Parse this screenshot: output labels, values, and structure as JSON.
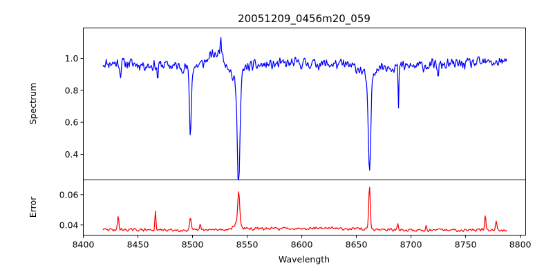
{
  "chart_data": {
    "type": "line",
    "title": "20051209_0456m20_059",
    "xlabel": "Wavelength",
    "grid": false,
    "legend": "none",
    "x_range": [
      8418,
      8788
    ],
    "panels": [
      {
        "id": "spectrum",
        "ylabel": "Spectrum",
        "xlim": [
          8400,
          8805
        ],
        "ylim": [
          0.24,
          1.19
        ],
        "yticks": [
          0.4,
          0.6,
          0.8,
          1.0
        ],
        "ytick_labels": [
          "0.4",
          "0.6",
          "0.8",
          "1.0"
        ],
        "series": [
          {
            "color": "#0000ff",
            "style": "noisy",
            "seed": 11,
            "x_start": 8418,
            "x_end": 8788,
            "step": 0.6,
            "baseline": 0.97,
            "noise": 0.042,
            "knots": [
              [
                8418,
                0.97
              ],
              [
                8440,
                0.97
              ],
              [
                8460,
                0.955
              ],
              [
                8475,
                0.96
              ],
              [
                8485,
                0.95
              ],
              [
                8500,
                0.94
              ],
              [
                8510,
                0.97
              ],
              [
                8518,
                1.02
              ],
              [
                8525,
                1.03
              ],
              [
                8530,
                0.98
              ],
              [
                8536,
                0.93
              ],
              [
                8550,
                0.95
              ],
              [
                8570,
                0.96
              ],
              [
                8600,
                0.97
              ],
              [
                8640,
                0.96
              ],
              [
                8655,
                0.93
              ],
              [
                8672,
                0.95
              ],
              [
                8700,
                0.95
              ],
              [
                8730,
                0.96
              ],
              [
                8760,
                0.97
              ],
              [
                8788,
                0.98
              ]
            ],
            "features": [
              {
                "center": 8498.0,
                "depth": 0.41,
                "width": 0.9,
                "sign": -1
              },
              {
                "center": 8542.2,
                "depth": 0.63,
                "width": 1.2,
                "sign": -1
              },
              {
                "center": 8541.0,
                "depth": 0.1,
                "width": 3.5,
                "sign": -1
              },
              {
                "center": 8662.0,
                "depth": 0.58,
                "width": 1.1,
                "sign": -1
              },
              {
                "center": 8661.5,
                "depth": 0.09,
                "width": 3.0,
                "sign": -1
              },
              {
                "center": 8688.5,
                "depth": 0.27,
                "width": 0.4,
                "sign": -1
              },
              {
                "center": 8468.0,
                "depth": 0.09,
                "width": 0.5,
                "sign": -1
              },
              {
                "center": 8434.0,
                "depth": 0.08,
                "width": 0.5,
                "sign": -1
              },
              {
                "center": 8526.0,
                "depth": 0.12,
                "width": 0.6,
                "sign": 1
              },
              {
                "center": 8725.0,
                "depth": 0.1,
                "width": 0.4,
                "sign": -1
              }
            ]
          }
        ]
      },
      {
        "id": "error",
        "ylabel": "Error",
        "xlim": [
          8400,
          8805
        ],
        "ylim": [
          0.0333,
          0.0697
        ],
        "yticks": [
          0.04,
          0.06
        ],
        "ytick_labels": [
          "0.04",
          "0.06"
        ],
        "xticks": [
          8400,
          8450,
          8500,
          8550,
          8600,
          8650,
          8700,
          8750,
          8800
        ],
        "xtick_labels": [
          "8400",
          "8450",
          "8500",
          "8550",
          "8600",
          "8650",
          "8700",
          "8750",
          "8800"
        ],
        "series": [
          {
            "color": "#ff0000",
            "style": "noisy",
            "seed": 29,
            "x_start": 8418,
            "x_end": 8788,
            "step": 0.6,
            "baseline": 0.0368,
            "noise": 0.0011,
            "knots": [
              [
                8418,
                0.037
              ],
              [
                8500,
                0.0365
              ],
              [
                8560,
                0.0375
              ],
              [
                8620,
                0.038
              ],
              [
                8700,
                0.0365
              ],
              [
                8788,
                0.0368
              ]
            ],
            "features": [
              {
                "center": 8662.0,
                "depth": 0.029,
                "width": 0.7,
                "sign": 1
              },
              {
                "center": 8542.3,
                "depth": 0.021,
                "width": 0.9,
                "sign": 1
              },
              {
                "center": 8541.0,
                "depth": 0.004,
                "width": 3.0,
                "sign": 1
              },
              {
                "center": 8498.0,
                "depth": 0.008,
                "width": 0.7,
                "sign": 1
              },
              {
                "center": 8466.0,
                "depth": 0.0115,
                "width": 0.5,
                "sign": 1
              },
              {
                "center": 8432.0,
                "depth": 0.009,
                "width": 0.6,
                "sign": 1
              },
              {
                "center": 8768.0,
                "depth": 0.0105,
                "width": 0.5,
                "sign": 1
              },
              {
                "center": 8778.0,
                "depth": 0.006,
                "width": 0.6,
                "sign": 1
              },
              {
                "center": 8688.0,
                "depth": 0.004,
                "width": 0.5,
                "sign": 1
              },
              {
                "center": 8507.0,
                "depth": 0.004,
                "width": 0.5,
                "sign": 1
              },
              {
                "center": 8714.0,
                "depth": 0.003,
                "width": 0.5,
                "sign": 1
              }
            ]
          }
        ]
      }
    ]
  }
}
